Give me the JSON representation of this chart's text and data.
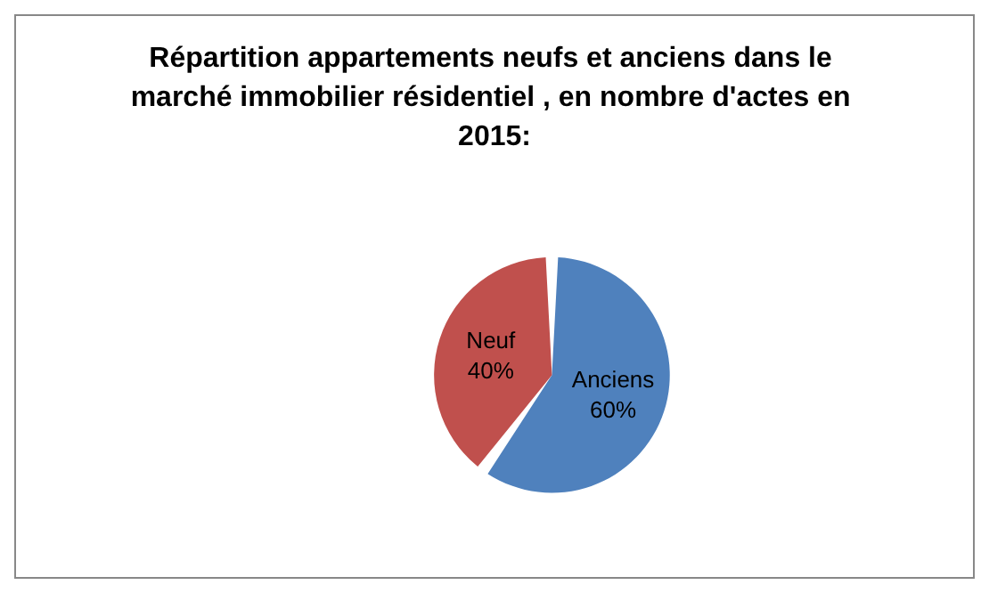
{
  "chart_data": {
    "type": "pie",
    "title": "Répartition appartements neufs et anciens dans le marché immobilier résidentiel , en nombre d'actes en 2015:",
    "categories": [
      "Anciens",
      "Neuf"
    ],
    "values": [
      60,
      40
    ],
    "value_labels": [
      "60%",
      "40%"
    ],
    "colors": [
      "#4f81bd",
      "#c0504d"
    ],
    "data_labels": true,
    "legend": false
  }
}
